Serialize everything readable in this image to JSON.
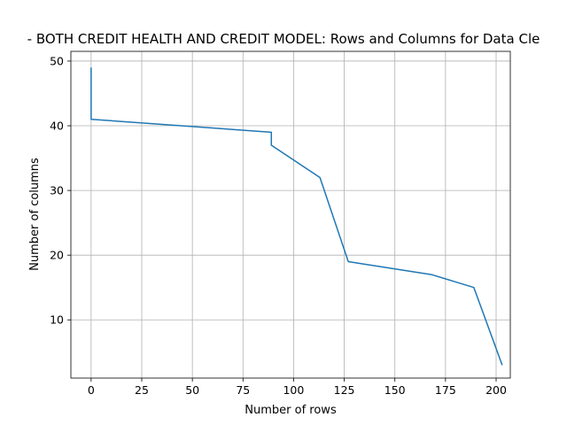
{
  "chart_data": {
    "type": "line",
    "title": "- BOTH CREDIT HEALTH AND CREDIT MODEL: Rows and Columns for Data Cle",
    "xlabel": "Number of rows",
    "ylabel": "Number of columns",
    "xlim": [
      -10,
      207
    ],
    "ylim": [
      1,
      51.5
    ],
    "xticks": [
      0,
      25,
      50,
      75,
      100,
      125,
      150,
      175,
      200
    ],
    "yticks": [
      10,
      20,
      30,
      40,
      50
    ],
    "grid": true,
    "colors": {
      "series": "#1f77b4",
      "grid": "#b0b0b0",
      "axes": "#000000"
    },
    "series": [
      {
        "x": [
          0,
          0,
          89,
          89,
          113,
          127,
          168,
          189,
          203
        ],
        "y": [
          49,
          41,
          39,
          37,
          32,
          19,
          17,
          15,
          3
        ]
      }
    ]
  }
}
